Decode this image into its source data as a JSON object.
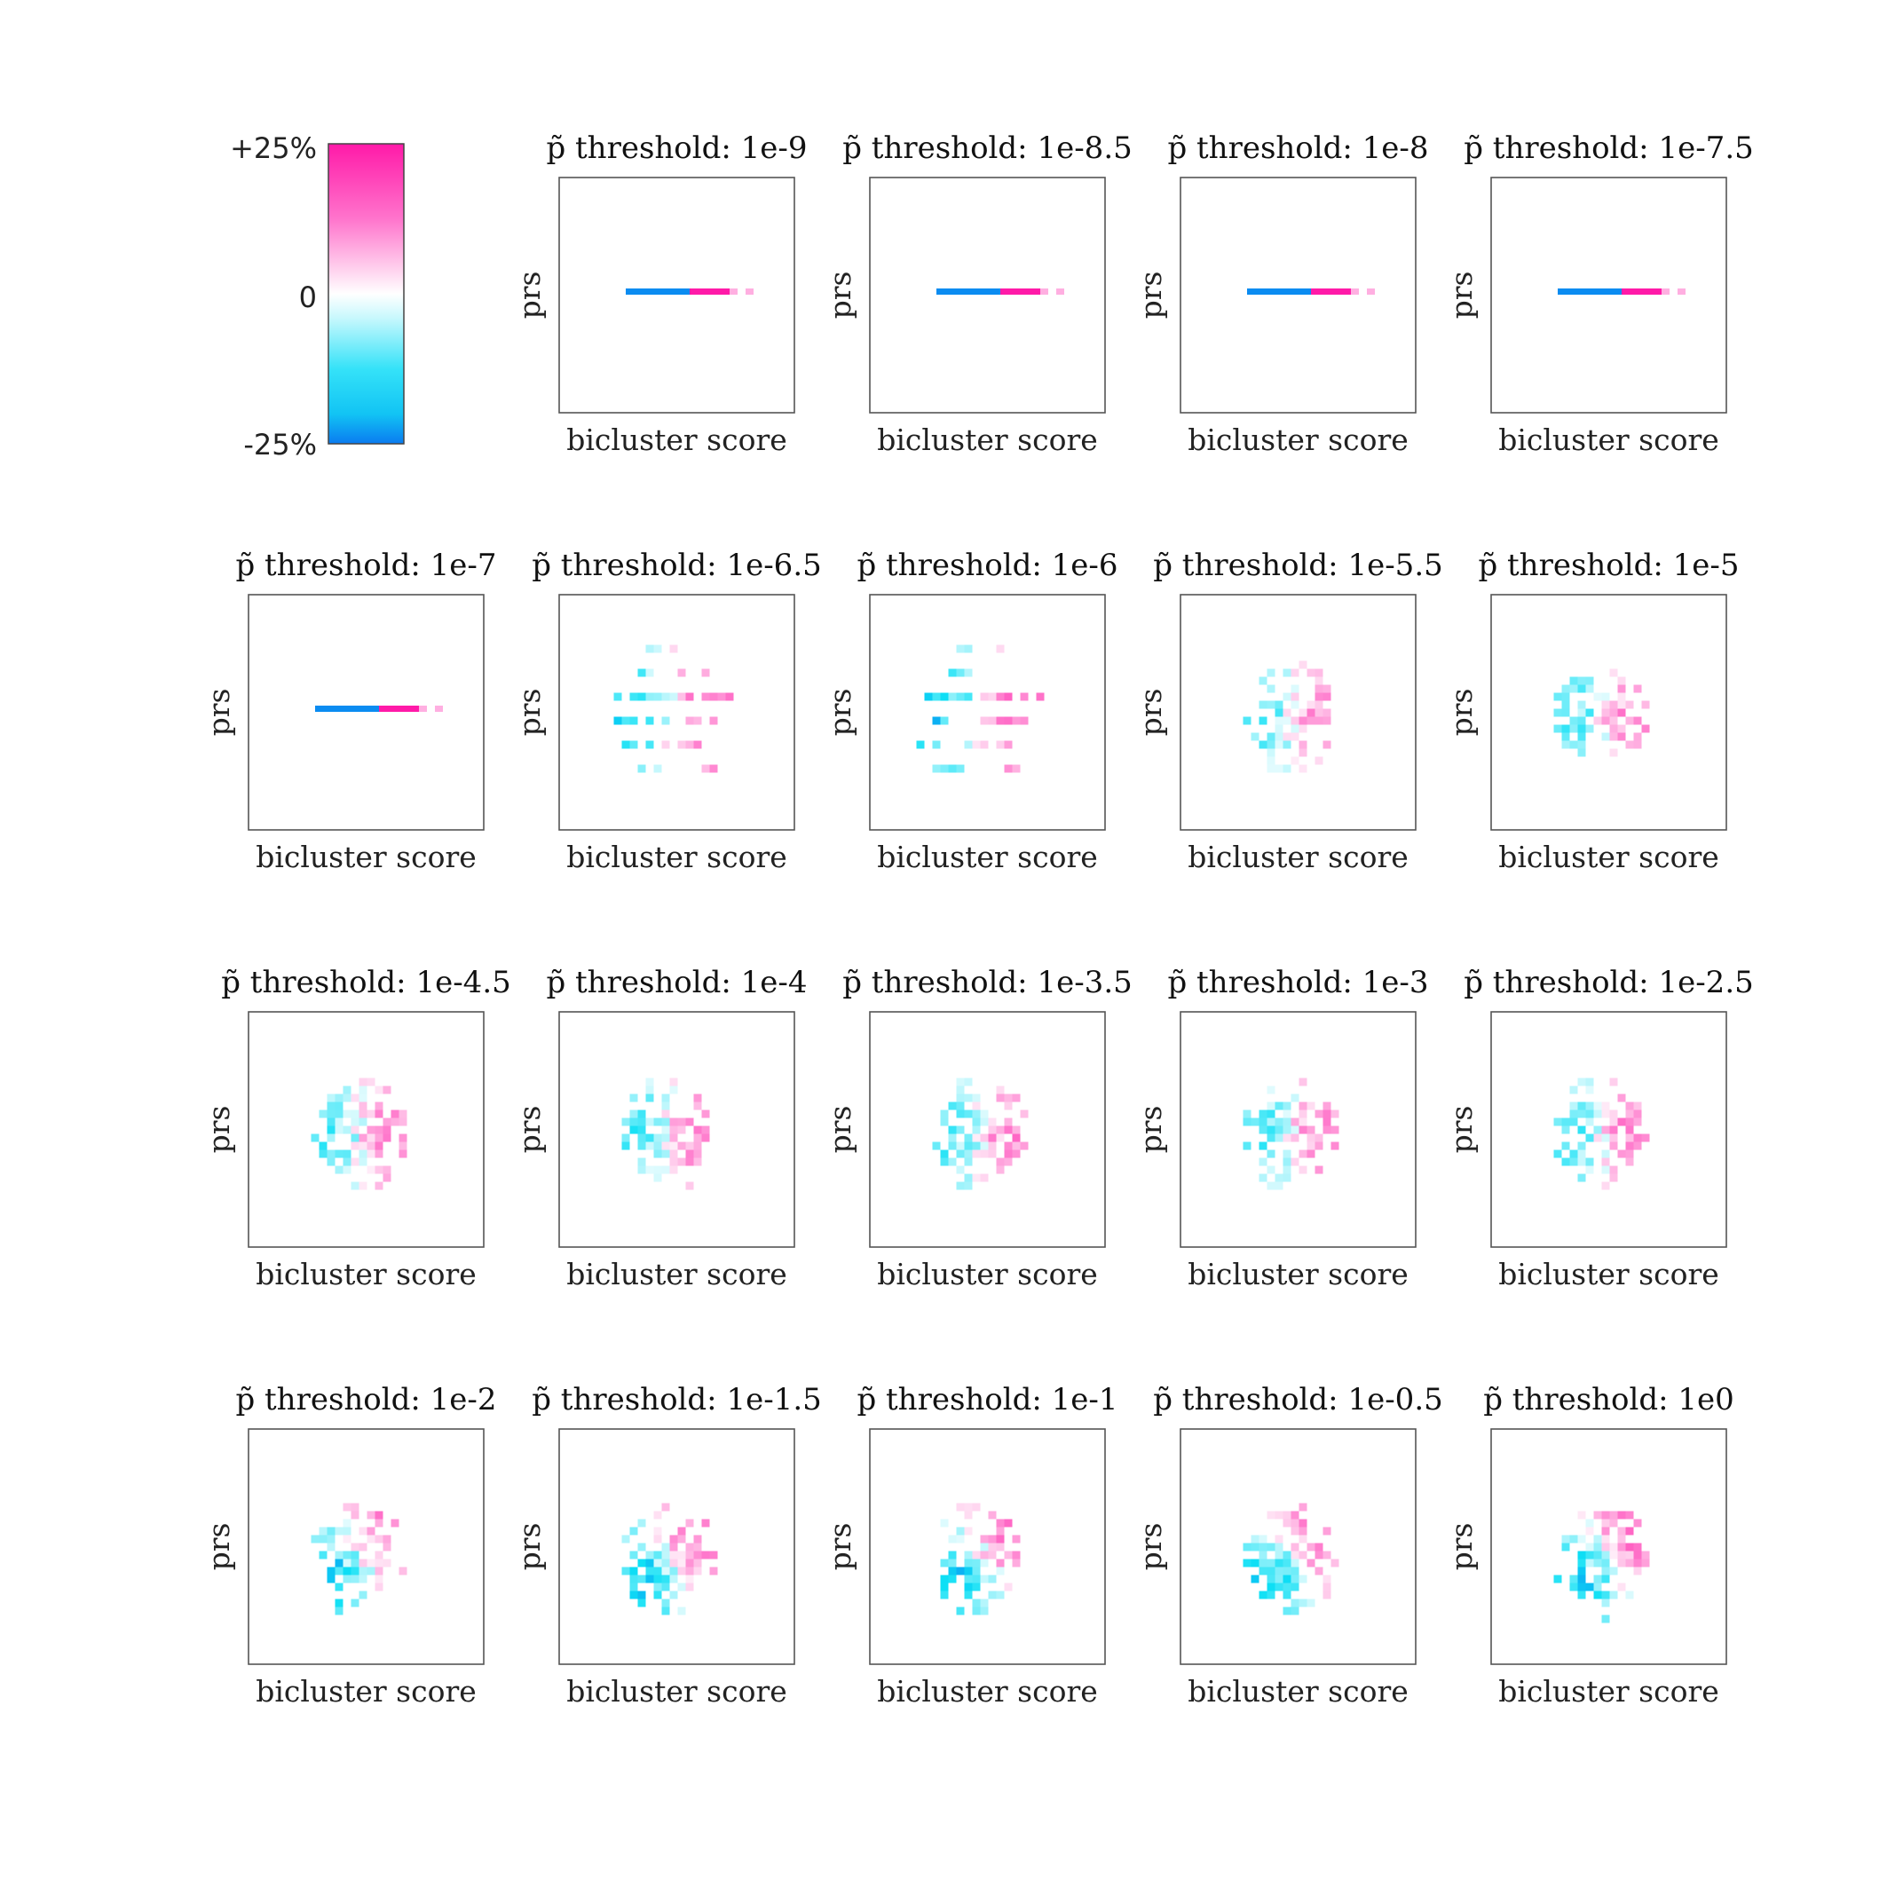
{
  "chart_data": {
    "type": "heatmap",
    "layout": "small-multiples",
    "panel_title_prefix": "p̃ threshold:  ",
    "xlabel": "bicluster score",
    "ylabel": "prs",
    "colorbar": {
      "label_top": "+25%",
      "label_mid": "0",
      "label_bottom": "-25%",
      "min": -25,
      "max": 25,
      "color_min": "#0a7bf0",
      "color_mid": "#ffffff",
      "color_max": "#ff1aa8",
      "color_low_mid": "#0ee0f5"
    },
    "panels": [
      {
        "threshold": "1e-9"
      },
      {
        "threshold": "1e-8.5"
      },
      {
        "threshold": "1e-8"
      },
      {
        "threshold": "1e-7.5"
      },
      {
        "threshold": "1e-7"
      },
      {
        "threshold": "1e-6.5"
      },
      {
        "threshold": "1e-6"
      },
      {
        "threshold": "1e-5.5"
      },
      {
        "threshold": "1e-5"
      },
      {
        "threshold": "1e-4.5"
      },
      {
        "threshold": "1e-4"
      },
      {
        "threshold": "1e-3.5"
      },
      {
        "threshold": "1e-3"
      },
      {
        "threshold": "1e-2.5"
      },
      {
        "threshold": "1e-2"
      },
      {
        "threshold": "1e-1.5"
      },
      {
        "threshold": "1e-1"
      },
      {
        "threshold": "1e-0.5"
      },
      {
        "threshold": "1e0"
      }
    ]
  }
}
